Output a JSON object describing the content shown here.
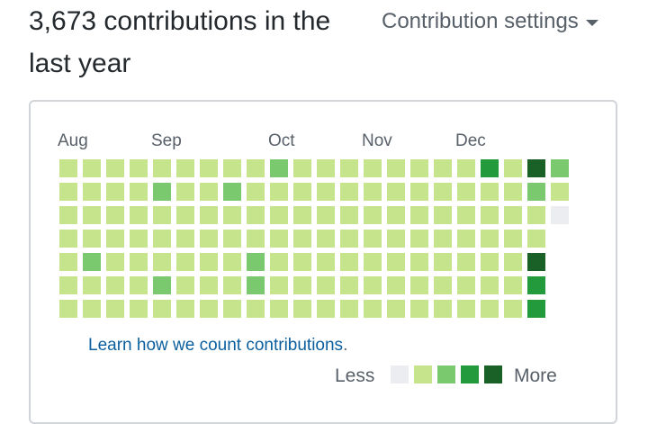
{
  "header": {
    "count_text": "3,673 contributions in the last year",
    "settings_label": "Contribution settings"
  },
  "calendar": {
    "months": [
      "Aug",
      "Sep",
      "Oct",
      "Nov",
      "Dec"
    ],
    "levels": [
      [
        1,
        1,
        1,
        1,
        1,
        1,
        1
      ],
      [
        1,
        1,
        1,
        1,
        2,
        1,
        1
      ],
      [
        1,
        1,
        1,
        1,
        1,
        1,
        1
      ],
      [
        1,
        1,
        1,
        1,
        1,
        1,
        1
      ],
      [
        1,
        2,
        1,
        1,
        1,
        2,
        1
      ],
      [
        1,
        1,
        1,
        1,
        1,
        1,
        1
      ],
      [
        1,
        1,
        1,
        1,
        1,
        1,
        1
      ],
      [
        1,
        2,
        1,
        1,
        1,
        1,
        1
      ],
      [
        1,
        1,
        1,
        1,
        2,
        2,
        1
      ],
      [
        2,
        1,
        1,
        1,
        1,
        1,
        1
      ],
      [
        1,
        1,
        1,
        1,
        1,
        1,
        1
      ],
      [
        1,
        1,
        1,
        1,
        1,
        1,
        1
      ],
      [
        1,
        1,
        1,
        1,
        1,
        1,
        1
      ],
      [
        1,
        1,
        1,
        1,
        1,
        1,
        1
      ],
      [
        1,
        1,
        1,
        1,
        1,
        1,
        1
      ],
      [
        1,
        1,
        1,
        1,
        1,
        1,
        1
      ],
      [
        1,
        1,
        1,
        1,
        1,
        1,
        1
      ],
      [
        1,
        1,
        1,
        1,
        1,
        1,
        1
      ],
      [
        3,
        1,
        1,
        1,
        1,
        1,
        1
      ],
      [
        1,
        1,
        1,
        1,
        1,
        1,
        1
      ],
      [
        4,
        2,
        1,
        1,
        4,
        3,
        3
      ],
      [
        2,
        1,
        0
      ]
    ],
    "colors": [
      "#ebedf0",
      "#c6e48b",
      "#7bc96f",
      "#239a3b",
      "#196127"
    ]
  },
  "footer": {
    "learn_link": "Learn how we count contributions",
    "learn_period": ".",
    "less_label": "Less",
    "more_label": "More"
  }
}
